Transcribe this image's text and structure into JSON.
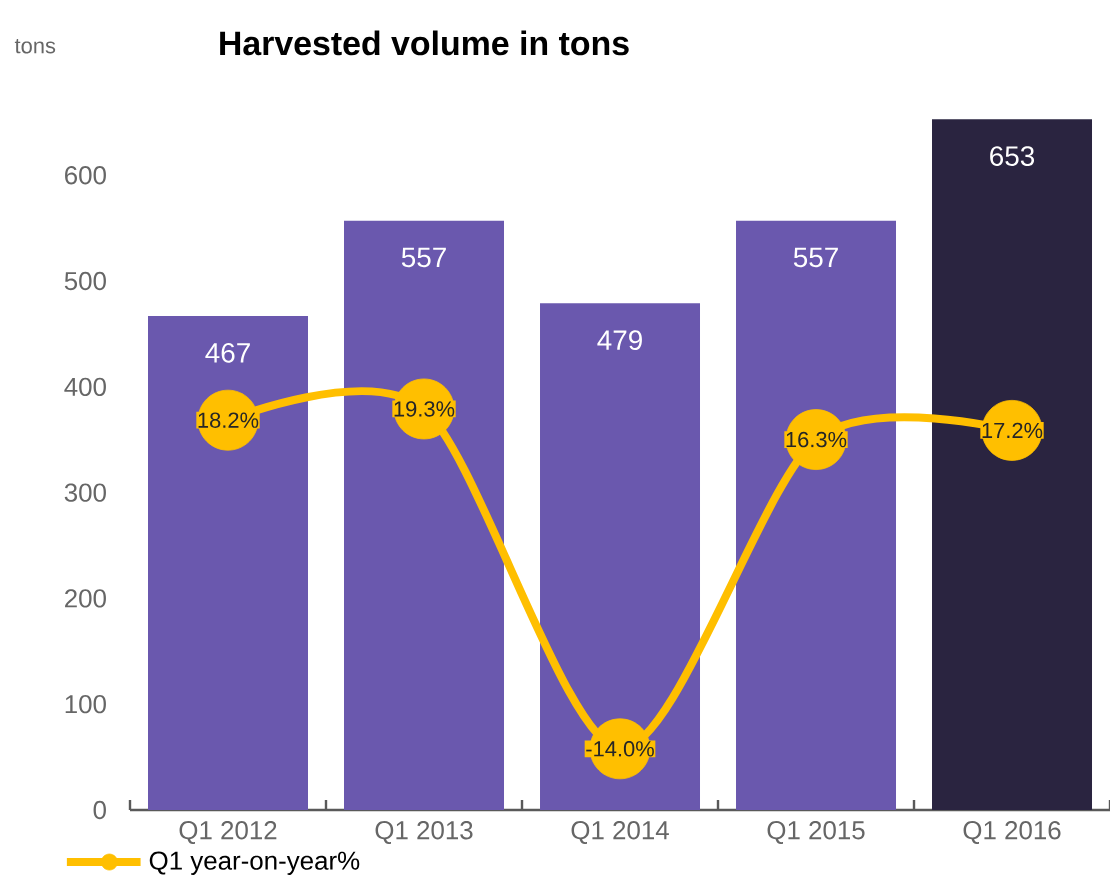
{
  "chart_data": {
    "type": "bar",
    "title": "Harvested volume in tons",
    "ylabel": "tons",
    "categories": [
      "Q1 2012",
      "Q1 2013",
      "Q1 2014",
      "Q1 2015",
      "Q1 2016"
    ],
    "ylim": [
      0,
      656
    ],
    "yticks": [
      0,
      100,
      200,
      300,
      400,
      500,
      600
    ],
    "series": [
      {
        "colors": [
          "#6a58ae",
          "#6a58ae",
          "#6a58ae",
          "#6a58ae",
          "#2a2440"
        ],
        "values": [
          467,
          557,
          479,
          557,
          653
        ],
        "data_labels": true
      },
      {
        "type": "line",
        "name": "Q1 year-on-year%",
        "color": "#ffbf00",
        "axis": "y2",
        "marker": "circle",
        "values": [
          18.2,
          19.3,
          -14.0,
          16.3,
          17.2
        ],
        "value_labels": [
          "18.2%",
          "19.3%",
          "-14.0%",
          "16.3%",
          "17.2%"
        ]
      }
    ],
    "grid": false,
    "legend": "bottom left"
  }
}
